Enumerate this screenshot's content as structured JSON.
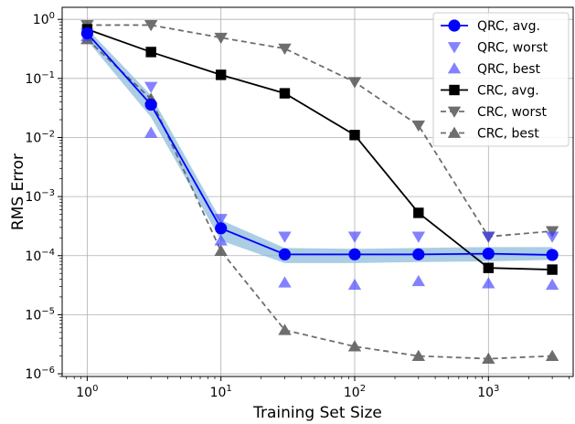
{
  "chart_data": {
    "type": "line",
    "xlabel": "Training Set Size",
    "ylabel": "RMS Error",
    "x_scale": "log",
    "y_scale": "log",
    "xlim": [
      0.65,
      4300
    ],
    "ylim": [
      9e-07,
      1.6
    ],
    "grid": true,
    "legend_position": "top-right",
    "x_ticks": [
      {
        "value": 1,
        "base": "10",
        "exp": "0"
      },
      {
        "value": 10,
        "base": "10",
        "exp": "1"
      },
      {
        "value": 100,
        "base": "10",
        "exp": "2"
      },
      {
        "value": 1000,
        "base": "10",
        "exp": "3"
      }
    ],
    "y_ticks": [
      {
        "value": 1e-06,
        "base": "10",
        "exp": "−6"
      },
      {
        "value": 1e-05,
        "base": "10",
        "exp": "−5"
      },
      {
        "value": 0.0001,
        "base": "10",
        "exp": "−4"
      },
      {
        "value": 0.001,
        "base": "10",
        "exp": "−3"
      },
      {
        "value": 0.01,
        "base": "10",
        "exp": "−2"
      },
      {
        "value": 0.1,
        "base": "10",
        "exp": "−1"
      },
      {
        "value": 1,
        "base": "10",
        "exp": "0"
      }
    ],
    "x": [
      1,
      3,
      10,
      30,
      100,
      300,
      1000,
      3000
    ],
    "band": {
      "color": "#8fbcdc",
      "lower": [
        0.44,
        0.022,
        0.00018,
        7.5e-05,
        7.5e-05,
        7.8e-05,
        8e-05,
        8.5e-05
      ],
      "upper": [
        0.7,
        0.052,
        0.0004,
        0.000135,
        0.00013,
        0.000135,
        0.00014,
        0.00014
      ]
    },
    "series": [
      {
        "name": "QRC, avg.",
        "color": "#0000ff",
        "line": "solid",
        "marker": "circle",
        "opacity": 1,
        "values": [
          0.58,
          0.036,
          0.00029,
          0.000105,
          0.000105,
          0.000105,
          0.000108,
          0.000103
        ]
      },
      {
        "name": "QRC, worst",
        "color": "#4040ff",
        "line": "none",
        "marker": "triangle-down",
        "opacity": 0.65,
        "values": [
          0.58,
          0.072,
          0.00042,
          0.00021,
          0.00021,
          0.00021,
          0.00021,
          0.00021
        ]
      },
      {
        "name": "QRC, best",
        "color": "#4040ff",
        "line": "none",
        "marker": "triangle-up",
        "opacity": 0.65,
        "values": [
          0.52,
          0.012,
          0.00018,
          3.5e-05,
          3.2e-05,
          3.7e-05,
          3.4e-05,
          3.2e-05
        ]
      },
      {
        "name": "CRC, avg.",
        "color": "#000000",
        "line": "solid",
        "marker": "square",
        "opacity": 1,
        "values": [
          0.68,
          0.28,
          0.115,
          0.056,
          0.011,
          0.00053,
          6.2e-05,
          5.8e-05
        ]
      },
      {
        "name": "CRC, worst",
        "color": "#555555",
        "line": "dashed",
        "marker": "triangle-down",
        "opacity": 0.85,
        "values": [
          0.8,
          0.8,
          0.49,
          0.32,
          0.087,
          0.016,
          0.00021,
          0.00026
        ]
      },
      {
        "name": "CRC, best",
        "color": "#555555",
        "line": "dashed",
        "marker": "triangle-up",
        "opacity": 0.85,
        "values": [
          0.46,
          0.045,
          0.00012,
          5.5e-06,
          2.9e-06,
          2e-06,
          1.8e-06,
          2e-06
        ]
      }
    ]
  }
}
